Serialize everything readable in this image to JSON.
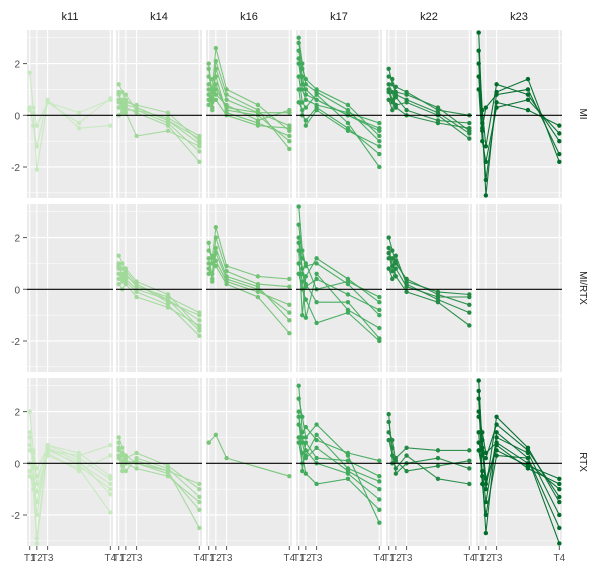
{
  "chart_data": {
    "type": "line",
    "facet_columns": [
      "k11",
      "k14",
      "k16",
      "k17",
      "k22",
      "k23"
    ],
    "facet_rows": [
      "MI",
      "MI/RTX",
      "RTX"
    ],
    "x_ticks": [
      "T1",
      "T2",
      "T3",
      "T4"
    ],
    "x_values": {
      "T1": 1,
      "T2": 1.8,
      "T3": 3,
      "T4": 10
    },
    "xlim": [
      0.7,
      10.3
    ],
    "ylim": [
      -3.2,
      3.3
    ],
    "y_ticks": [
      -2,
      0,
      2
    ],
    "reference_line": 0,
    "grid": true,
    "panel_background": "#ebebeb",
    "column_colors": {
      "k11": "#c7e9c0",
      "k14": "#a1d99b",
      "k16": "#74c476",
      "k17": "#41ab5d",
      "k22": "#238b45",
      "k23": "#006d2c"
    },
    "panels": {
      "k11|MI": [
        [
          1.65,
          0.3,
          -0.4,
          0.5,
          -0.3,
          0.65
        ],
        [
          0.3,
          -0.4,
          -1.2,
          0.6,
          -0.5,
          -0.4
        ],
        [
          0.2,
          0.1,
          -2.1,
          0.5,
          0.1,
          0.6
        ]
      ],
      "k11|MI/RTX": [],
      "k11|RTX": [
        [
          2.0,
          0.5,
          -0.8,
          0.7,
          0.2,
          -0.6
        ],
        [
          1.2,
          -0.2,
          -2.9,
          0.6,
          -0.1,
          -1.0
        ],
        [
          -0.5,
          -0.8,
          -1.5,
          0.5,
          0.3,
          0.7
        ],
        [
          0.5,
          0.2,
          -0.5,
          0.3,
          -0.2,
          -1.9
        ],
        [
          1.0,
          -0.1,
          -2.0,
          0.7,
          0.4,
          -0.5
        ],
        [
          0.0,
          -0.6,
          -1.1,
          0.4,
          -0.3,
          0.3
        ],
        [
          -0.3,
          -1.0,
          -3.1,
          0.5,
          0.0,
          -0.8
        ],
        [
          0.7,
          0.4,
          -0.2,
          0.6,
          0.1,
          -1.2
        ]
      ],
      "k14|MI": [
        [
          1.2,
          0.9,
          0.5,
          0.4,
          0.1,
          -1.0
        ],
        [
          0.8,
          0.5,
          0.8,
          0.2,
          -0.3,
          -1.4
        ],
        [
          0.5,
          0.3,
          0.6,
          0.3,
          -0.2,
          -0.9
        ],
        [
          0.9,
          0.1,
          0.3,
          0.1,
          -0.4,
          -1.8
        ],
        [
          0.3,
          0.6,
          0.2,
          0.2,
          -0.1,
          -0.8
        ],
        [
          0.6,
          0.4,
          0.1,
          -0.8,
          -0.6,
          -1.2
        ],
        [
          0.0,
          0.2,
          0.4,
          0.3,
          -0.2,
          -1.1
        ]
      ],
      "k14|MI/RTX": [
        [
          1.3,
          1.0,
          0.8,
          0.3,
          -0.2,
          -1.5
        ],
        [
          0.8,
          0.6,
          0.5,
          0.2,
          -0.4,
          -1.2
        ],
        [
          0.4,
          0.4,
          0.3,
          -0.1,
          -0.6,
          -1.8
        ],
        [
          1.0,
          0.8,
          0.6,
          0.1,
          -0.3,
          -0.9
        ],
        [
          0.2,
          0.0,
          0.2,
          -0.3,
          -0.7,
          -1.4
        ],
        [
          0.6,
          0.3,
          0.7,
          0.2,
          -0.5,
          -1.0
        ],
        [
          0.9,
          0.5,
          0.4,
          0.0,
          -0.4,
          -1.6
        ]
      ],
      "k14|RTX": [
        [
          1.0,
          0.6,
          0.2,
          0.4,
          -0.1,
          -1.0
        ],
        [
          0.5,
          0.3,
          0.0,
          0.1,
          -0.3,
          -2.5
        ],
        [
          0.8,
          -0.1,
          0.1,
          0.0,
          -0.4,
          -1.8
        ],
        [
          0.3,
          0.1,
          -0.3,
          0.2,
          -0.2,
          -1.3
        ],
        [
          0.6,
          0.4,
          0.3,
          0.0,
          -0.3,
          -0.8
        ],
        [
          0.2,
          -0.3,
          0.0,
          -0.2,
          -0.5,
          -1.5
        ]
      ],
      "k16|MI": [
        [
          1.5,
          1.0,
          2.6,
          1.0,
          0.4,
          -0.6
        ],
        [
          0.8,
          0.3,
          1.8,
          0.6,
          0.1,
          -0.4
        ],
        [
          2.0,
          0.6,
          1.2,
          0.2,
          0.0,
          -1.0
        ],
        [
          1.2,
          1.4,
          0.8,
          0.4,
          -0.2,
          0.2
        ],
        [
          0.4,
          0.9,
          1.5,
          0.1,
          -0.3,
          -0.8
        ],
        [
          1.0,
          0.2,
          2.1,
          0.8,
          0.2,
          -1.3
        ],
        [
          0.6,
          0.7,
          1.0,
          0.3,
          0.1,
          0.1
        ],
        [
          1.8,
          0.5,
          0.6,
          0.0,
          -0.4,
          -0.5
        ]
      ],
      "k16|MI/RTX": [
        [
          1.5,
          1.2,
          2.4,
          0.9,
          0.5,
          0.4
        ],
        [
          0.8,
          0.4,
          1.6,
          0.5,
          0.1,
          -1.2
        ],
        [
          1.8,
          1.0,
          1.1,
          0.3,
          -0.1,
          -0.6
        ],
        [
          1.0,
          0.6,
          2.0,
          0.7,
          0.2,
          0.1
        ],
        [
          0.6,
          1.3,
          0.9,
          0.2,
          -0.3,
          -1.7
        ],
        [
          1.2,
          0.3,
          1.4,
          0.4,
          0.0,
          -0.9
        ]
      ],
      "k16|RTX": [
        [
          0.8,
          1.1,
          0.2,
          -0.5
        ]
      ],
      "k17|MI": [
        [
          2.5,
          1.5,
          0.8,
          0.6,
          0.0,
          -0.5
        ],
        [
          3.0,
          2.0,
          1.2,
          0.9,
          0.2,
          -1.0
        ],
        [
          1.5,
          0.5,
          0.3,
          0.8,
          -0.3,
          -2.0
        ],
        [
          2.0,
          1.0,
          0.6,
          0.4,
          0.1,
          -0.3
        ],
        [
          1.0,
          0.0,
          -0.2,
          0.3,
          -0.5,
          -1.5
        ],
        [
          2.8,
          1.8,
          1.4,
          1.0,
          0.4,
          -0.8
        ],
        [
          0.5,
          0.2,
          -0.4,
          0.2,
          -0.6,
          -1.2
        ],
        [
          2.2,
          1.2,
          1.0,
          0.6,
          0.0,
          -0.6
        ]
      ],
      "k17|MI/RTX": [
        [
          3.2,
          1.5,
          0.9,
          1.0,
          0.2,
          -1.0
        ],
        [
          2.0,
          0.8,
          0.2,
          -0.5,
          -0.5,
          -1.9
        ],
        [
          1.5,
          -1.0,
          0.5,
          1.2,
          0.4,
          -0.5
        ],
        [
          1.0,
          0.3,
          -1.1,
          0.6,
          -0.8,
          -1.5
        ],
        [
          2.5,
          1.2,
          1.0,
          0.0,
          0.3,
          -0.3
        ],
        [
          0.6,
          0.0,
          -0.4,
          -1.3,
          -0.9,
          -2.0
        ],
        [
          1.8,
          0.6,
          0.1,
          0.4,
          -0.2,
          -0.8
        ]
      ],
      "k17|RTX": [
        [
          2.5,
          1.8,
          1.0,
          1.5,
          0.3,
          -2.3
        ],
        [
          1.5,
          0.8,
          0.2,
          0.6,
          -0.3,
          -1.0
        ],
        [
          2.0,
          -0.3,
          0.8,
          0.2,
          0.1,
          -0.5
        ],
        [
          1.0,
          0.4,
          -0.4,
          -0.8,
          -0.6,
          -1.8
        ],
        [
          3.0,
          1.2,
          1.4,
          0.9,
          0.4,
          0.1
        ],
        [
          0.8,
          0.0,
          0.3,
          1.1,
          -0.2,
          -0.7
        ],
        [
          1.8,
          1.0,
          0.5,
          0.0,
          -0.4,
          -1.4
        ]
      ],
      "k22|MI": [
        [
          1.8,
          1.2,
          0.9,
          0.8,
          0.3,
          -0.6
        ],
        [
          1.0,
          0.6,
          0.4,
          0.5,
          0.0,
          -0.9
        ],
        [
          1.5,
          1.4,
          0.7,
          0.2,
          -0.2,
          -0.3
        ],
        [
          0.6,
          0.2,
          0.8,
          0.6,
          0.1,
          -0.7
        ],
        [
          1.2,
          0.9,
          0.3,
          0.0,
          -0.3,
          -0.5
        ],
        [
          0.9,
          0.5,
          1.1,
          0.9,
          0.2,
          0.0
        ]
      ],
      "k22|MI/RTX": [
        [
          2.0,
          1.5,
          1.0,
          0.4,
          -0.2,
          -0.6
        ],
        [
          1.6,
          0.9,
          1.3,
          0.2,
          -0.4,
          -0.9
        ],
        [
          1.2,
          1.2,
          0.5,
          -0.1,
          -0.5,
          -1.4
        ],
        [
          0.8,
          0.4,
          0.8,
          0.1,
          -0.3,
          -0.3
        ],
        [
          1.4,
          0.7,
          1.1,
          0.3,
          -0.1,
          -0.2
        ]
      ],
      "k22|RTX": [
        [
          1.9,
          0.0,
          0.2,
          0.6,
          0.5,
          0.5
        ],
        [
          1.6,
          0.6,
          -0.4,
          0.0,
          0.2,
          -0.2
        ],
        [
          1.2,
          0.9,
          0.1,
          -0.3,
          -0.1,
          0.1
        ],
        [
          0.9,
          0.3,
          -0.2,
          0.3,
          -0.6,
          -0.8
        ]
      ],
      "k23|MI": [
        [
          3.2,
          -0.3,
          -3.1,
          0.9,
          1.4,
          -1.8
        ],
        [
          2.5,
          0.2,
          -1.2,
          1.2,
          0.8,
          -1.0
        ],
        [
          1.5,
          -0.6,
          -2.5,
          0.5,
          0.2,
          -0.4
        ],
        [
          2.0,
          -0.5,
          0.3,
          0.8,
          1.0,
          -1.5
        ],
        [
          1.0,
          -1.0,
          -1.8,
          0.3,
          0.6,
          -0.7
        ]
      ],
      "k23|MI/RTX": [],
      "k23|RTX": [
        [
          3.2,
          0.6,
          -1.0,
          1.8,
          0.6,
          -1.5
        ],
        [
          2.5,
          -0.5,
          -2.7,
          1.2,
          0.2,
          -3.1
        ],
        [
          1.8,
          1.2,
          0.4,
          0.8,
          0.0,
          -1.0
        ],
        [
          0.5,
          -0.3,
          -1.5,
          1.0,
          0.4,
          -2.0
        ],
        [
          2.0,
          0.9,
          -0.6,
          0.5,
          -0.1,
          -0.6
        ],
        [
          1.2,
          -0.8,
          -2.0,
          0.3,
          0.2,
          -2.5
        ],
        [
          2.8,
          0.3,
          0.2,
          1.5,
          0.5,
          -1.3
        ],
        [
          0.8,
          0.5,
          -0.8,
          0.7,
          -0.2,
          -0.8
        ]
      ]
    }
  }
}
